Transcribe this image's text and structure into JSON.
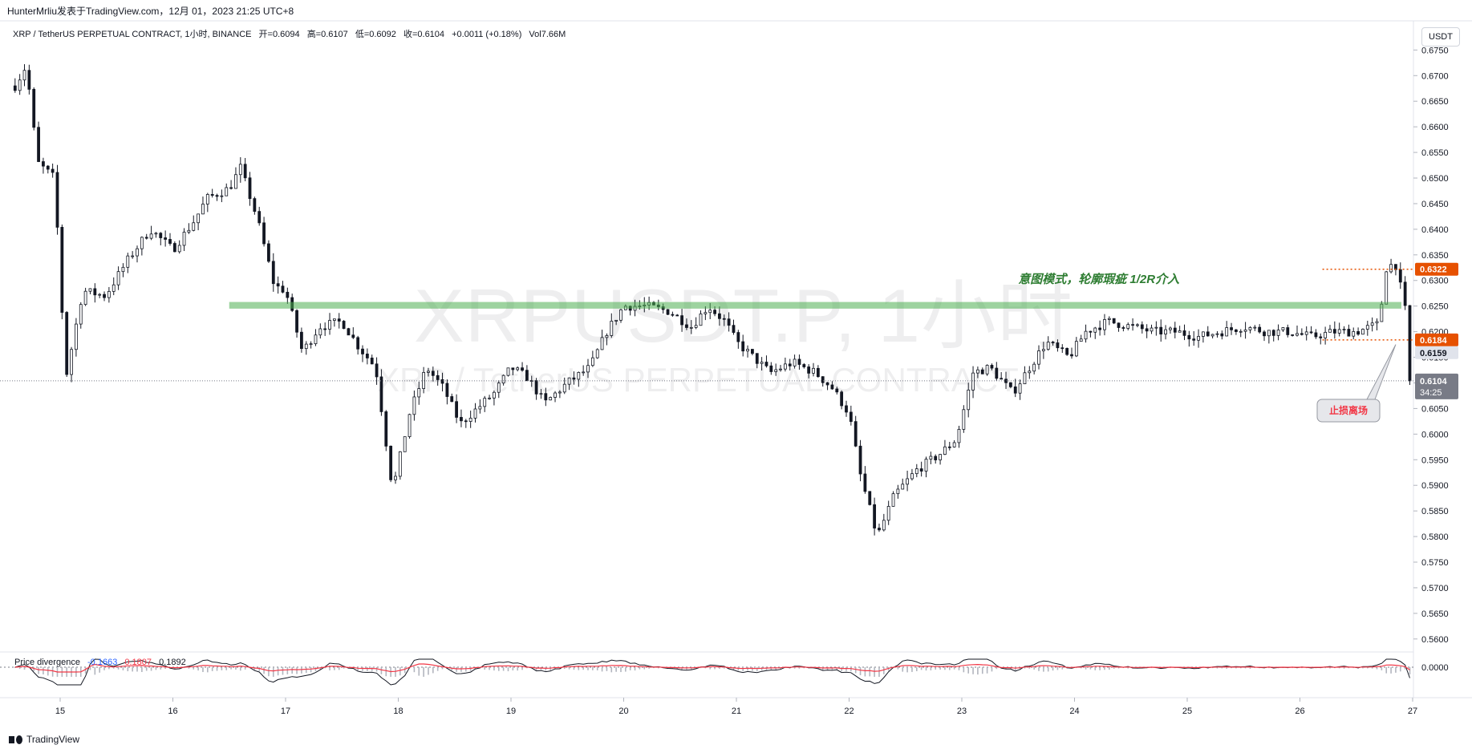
{
  "header": {
    "publish_line": "HunterMrliu发表于TradingView.com，12月 01，2023 21:25 UTC+8"
  },
  "legend": {
    "symbol": "XRP / TetherUS PERPETUAL CONTRACT, 1小时, BINANCE",
    "open": "开=0.6094",
    "high": "高=0.6107",
    "low": "低=0.6092",
    "close": "收=0.6104",
    "change": "+0.0011 (+0.18%)",
    "volume": "Vol7.66M"
  },
  "currency_button": "USDT",
  "watermark": {
    "line1": "XRPUSDT.P, 1小时",
    "line2": "XRP / TetherUS PERPETUAL CONTRACT"
  },
  "annotations": {
    "green_text": "意图模式，轮廓瑕疵 1/2R介入",
    "stop_label": "止损离场"
  },
  "price_labels": {
    "target": "0.6322",
    "entry": "0.6184",
    "prev": "0.6159",
    "last": "0.6104",
    "countdown": "34:25"
  },
  "indicator": {
    "name": "Price divergence",
    "v1": "-0.1663",
    "v2": "0.1807",
    "v3": "0.1892",
    "zero_label": "0.0000"
  },
  "brand": "TradingView",
  "colors": {
    "up": "#ffffff",
    "down": "#131722",
    "zone": "#4caf50",
    "target": "#e65100",
    "annotation_text": "#2e7d32",
    "stop_text": "#f23645"
  },
  "chart_data": {
    "type": "candlestick",
    "timeframe": "1h",
    "y_ticks": [
      "0.6750",
      "0.6700",
      "0.6650",
      "0.6600",
      "0.6550",
      "0.6500",
      "0.6450",
      "0.6400",
      "0.6350",
      "0.6300",
      "0.6250",
      "0.6200",
      "0.6150",
      "0.6100",
      "0.6050",
      "0.6000",
      "0.5950",
      "0.5900",
      "0.5850",
      "0.5800",
      "0.5750",
      "0.5700",
      "0.5650",
      "0.5600"
    ],
    "x_ticks": [
      "15",
      "16",
      "17",
      "18",
      "19",
      "20",
      "21",
      "22",
      "23",
      "24",
      "25",
      "26",
      "27"
    ],
    "ylim": [
      0.5595,
      0.6785
    ],
    "resistance_zone": [
      0.6245,
      0.6258
    ],
    "target_level": 0.6322,
    "entry_level": 0.6184,
    "current_price": 0.6104,
    "path": [
      [
        14.6,
        0.668
      ],
      [
        14.7,
        0.672
      ],
      [
        14.8,
        0.653
      ],
      [
        14.95,
        0.65
      ],
      [
        15.05,
        0.611
      ],
      [
        15.2,
        0.628
      ],
      [
        15.4,
        0.627
      ],
      [
        15.6,
        0.634
      ],
      [
        15.8,
        0.64
      ],
      [
        16.0,
        0.636
      ],
      [
        16.2,
        0.642
      ],
      [
        16.3,
        0.646
      ],
      [
        16.5,
        0.648
      ],
      [
        16.6,
        0.652
      ],
      [
        16.75,
        0.642
      ],
      [
        16.9,
        0.629
      ],
      [
        17.0,
        0.628
      ],
      [
        17.15,
        0.616
      ],
      [
        17.3,
        0.621
      ],
      [
        17.5,
        0.622
      ],
      [
        17.65,
        0.617
      ],
      [
        17.8,
        0.613
      ],
      [
        17.95,
        0.589
      ],
      [
        18.1,
        0.604
      ],
      [
        18.25,
        0.613
      ],
      [
        18.4,
        0.609
      ],
      [
        18.55,
        0.602
      ],
      [
        18.7,
        0.605
      ],
      [
        18.85,
        0.608
      ],
      [
        19.0,
        0.613
      ],
      [
        19.15,
        0.611
      ],
      [
        19.3,
        0.606
      ],
      [
        19.5,
        0.61
      ],
      [
        19.7,
        0.613
      ],
      [
        19.85,
        0.62
      ],
      [
        20.0,
        0.625
      ],
      [
        20.2,
        0.625
      ],
      [
        20.4,
        0.624
      ],
      [
        20.6,
        0.621
      ],
      [
        20.75,
        0.625
      ],
      [
        20.9,
        0.622
      ],
      [
        21.0,
        0.618
      ],
      [
        21.15,
        0.615
      ],
      [
        21.3,
        0.612
      ],
      [
        21.5,
        0.614
      ],
      [
        21.7,
        0.612
      ],
      [
        21.85,
        0.609
      ],
      [
        22.0,
        0.604
      ],
      [
        22.1,
        0.592
      ],
      [
        22.25,
        0.58
      ],
      [
        22.4,
        0.588
      ],
      [
        22.6,
        0.593
      ],
      [
        22.8,
        0.596
      ],
      [
        22.95,
        0.599
      ],
      [
        23.1,
        0.612
      ],
      [
        23.25,
        0.613
      ],
      [
        23.45,
        0.608
      ],
      [
        23.6,
        0.613
      ],
      [
        23.75,
        0.618
      ],
      [
        23.95,
        0.615
      ],
      [
        24.1,
        0.62
      ],
      [
        24.3,
        0.622
      ],
      [
        24.5,
        0.621
      ],
      [
        24.7,
        0.62
      ],
      [
        24.9,
        0.62
      ],
      [
        25.1,
        0.619
      ],
      [
        25.3,
        0.62
      ],
      [
        25.5,
        0.621
      ],
      [
        25.7,
        0.62
      ],
      [
        25.9,
        0.62
      ],
      [
        26.1,
        0.619
      ],
      [
        26.3,
        0.62
      ],
      [
        26.5,
        0.62
      ],
      [
        26.7,
        0.6215
      ],
      [
        26.77,
        0.633
      ],
      [
        26.85,
        0.633
      ],
      [
        26.93,
        0.625
      ],
      [
        27.0,
        0.6104
      ]
    ]
  }
}
